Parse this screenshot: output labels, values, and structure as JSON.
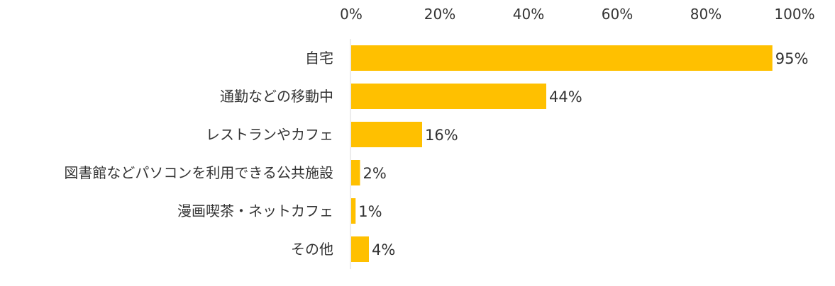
{
  "chart_data": {
    "type": "bar",
    "orientation": "horizontal",
    "title": "",
    "xlabel": "",
    "ylabel": "",
    "xlim": [
      0,
      100
    ],
    "x_ticks": [
      "0%",
      "20%",
      "40%",
      "60%",
      "80%",
      "100%"
    ],
    "x_tick_values": [
      0,
      20,
      40,
      60,
      80,
      100
    ],
    "tick_position": "top",
    "grid": false,
    "legend": "none",
    "bar_color": "#FFC000",
    "categories": [
      "自宅",
      "通勤などの移動中",
      "レストランやカフェ",
      "図書館などパソコンを利用できる公共施設",
      "漫画喫茶・ネットカフェ",
      "その他"
    ],
    "values": [
      95,
      44,
      16,
      2,
      1,
      4
    ],
    "value_labels": [
      "95%",
      "44%",
      "16%",
      "2%",
      "1%",
      "4%"
    ]
  }
}
